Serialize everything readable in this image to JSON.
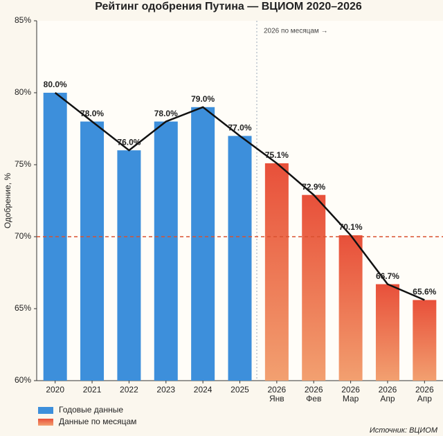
{
  "chart_data": {
    "type": "bar",
    "title": "Рейтинг одобрения Путина — ВЦИОМ 2020–2026",
    "y_label": "Одобрение, %",
    "categories": [
      [
        "2020"
      ],
      [
        "2021"
      ],
      [
        "2022"
      ],
      [
        "2023"
      ],
      [
        "2024"
      ],
      [
        "2025"
      ],
      [
        "2026",
        "Янв"
      ],
      [
        "2026",
        "Фев"
      ],
      [
        "2026",
        "Мар"
      ],
      [
        "2026",
        "Апр"
      ],
      [
        "2026",
        "Апр"
      ]
    ],
    "series": [
      {
        "name": "Годовые данные",
        "color": "#3d8fdb",
        "values": [
          80.0,
          78.0,
          76.0,
          78.0,
          79.0,
          77.0,
          null,
          null,
          null,
          null,
          null
        ],
        "value_labels": [
          "80.0%",
          "78.0%",
          "76.0%",
          "78.0%",
          "79.0%",
          "77.0%",
          null,
          null,
          null,
          null,
          null
        ]
      },
      {
        "name": "Данные по месяцам",
        "color": "#e8553c",
        "values": [
          null,
          null,
          null,
          null,
          null,
          null,
          75.1,
          72.9,
          70.1,
          66.7,
          65.6
        ],
        "value_labels": [
          null,
          null,
          null,
          null,
          null,
          null,
          "75.1%",
          "72.9%",
          "70.1%",
          "66.7%",
          "65.6%"
        ]
      }
    ],
    "trend_line_color": "#111111",
    "ref_line": 70,
    "ref_line_color": "#d9502f",
    "annotation": "2026 по месяцам →",
    "source": "Источник: ВЦИОМ",
    "ylim": [
      60,
      85
    ],
    "yticks": [
      {
        "value": 60,
        "label": "60%"
      },
      {
        "value": 65,
        "label": "65%"
      },
      {
        "value": 70,
        "label": "70%"
      },
      {
        "value": 75,
        "label": "75%"
      },
      {
        "value": 80,
        "label": "80%"
      },
      {
        "value": 85,
        "label": "85%"
      }
    ]
  }
}
